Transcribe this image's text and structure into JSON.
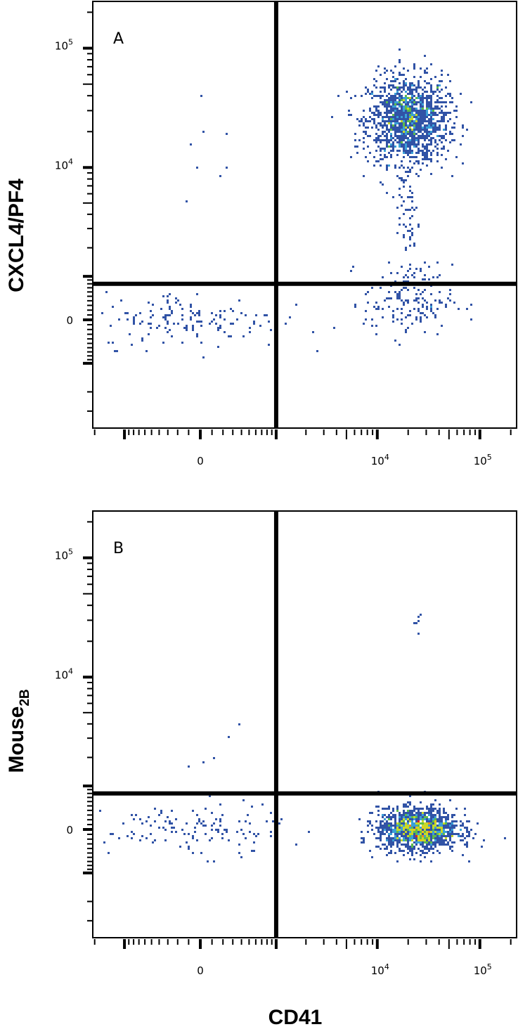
{
  "chart_data": [
    {
      "type": "scatter",
      "panel_label": "A",
      "xlabel": "CD41",
      "ylabel": "CXCL4/PF4",
      "ylabel_subscript": "",
      "scale": "biexponential",
      "x_tick_labels": [
        {
          "value": 0,
          "label": "0"
        },
        {
          "value": 10000,
          "label": "10",
          "exp": "4"
        },
        {
          "value": 100000,
          "label": "10",
          "exp": "5"
        }
      ],
      "y_tick_labels": [
        {
          "value": 0,
          "label": "0"
        },
        {
          "value": 10000,
          "label": "10",
          "exp": "4"
        },
        {
          "value": 100000,
          "label": "10",
          "exp": "5"
        }
      ],
      "quadrant_gates": {
        "x": 1000,
        "y": 800
      },
      "color_mode": "density (blue-low to red-high)",
      "populations": [
        {
          "cd41": 20000,
          "y": 25000,
          "events": 1500
        },
        {
          "cd41": 20000,
          "y": 400,
          "events": 170
        },
        {
          "cd41": 20000,
          "y": 4000,
          "events": 60
        },
        {
          "cd41": -80,
          "y": 0,
          "events": 150
        },
        {
          "cd41": 200,
          "y": 20000,
          "events": 8
        }
      ]
    },
    {
      "type": "scatter",
      "panel_label": "B",
      "xlabel": "CD41",
      "ylabel": "Mouse",
      "ylabel_subscript": "2B",
      "scale": "biexponential",
      "x_tick_labels": [
        {
          "value": 0,
          "label": "0"
        },
        {
          "value": 10000,
          "label": "10",
          "exp": "4"
        },
        {
          "value": 100000,
          "label": "10",
          "exp": "5"
        }
      ],
      "y_tick_labels": [
        {
          "value": 0,
          "label": "0"
        },
        {
          "value": 10000,
          "label": "10",
          "exp": "4"
        },
        {
          "value": 100000,
          "label": "10",
          "exp": "5"
        }
      ],
      "quadrant_gates": {
        "x": 1000,
        "y": 800
      },
      "color_mode": "density (blue-low to red-high)",
      "populations": [
        {
          "cd41": 25000,
          "y": 0,
          "events": 1500
        },
        {
          "cd41": -50,
          "y": 0,
          "events": 130
        },
        {
          "cd41": 25000,
          "y": 30000,
          "events": 6
        },
        {
          "cd41": 300,
          "y": 2000,
          "events": 6
        }
      ]
    }
  ],
  "figure": {
    "xlabel": "CD41"
  }
}
